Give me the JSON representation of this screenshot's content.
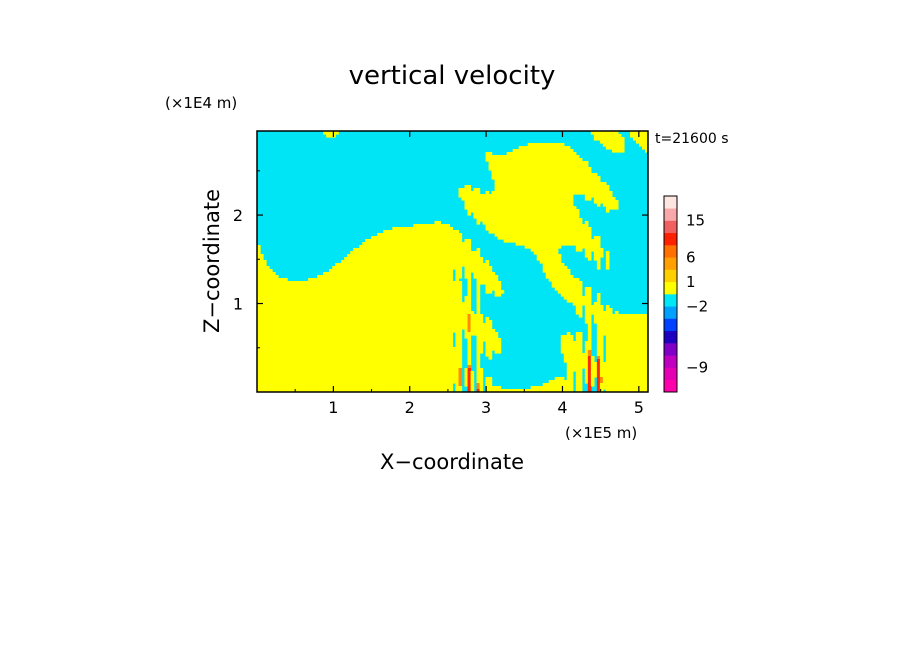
{
  "chart_data": {
    "type": "heatmap",
    "title": "vertical velocity",
    "xlabel": "X−coordinate",
    "ylabel": "Z−coordinate",
    "x_unit": "(×1E5 m)",
    "y_unit": "(×1E4 m)",
    "time_label": "t=21600 s",
    "xlim": [
      0,
      5.12
    ],
    "ylim": [
      0,
      2.95
    ],
    "x_ticks": [
      1,
      2,
      3,
      4,
      5
    ],
    "y_ticks": [
      1,
      2
    ],
    "x_tick_labels": [
      "1",
      "2",
      "3",
      "4",
      "5"
    ],
    "y_tick_labels": [
      "1",
      "2"
    ],
    "grid": false,
    "field_colors": {
      "negative_weak": "#00e5f5",
      "positive_weak": "#ffff00",
      "strong_negative": "#1a1ad0",
      "strong_positive": "#ff2b00",
      "orange": "#ff8c00"
    },
    "intense_cells_x": [
      2.8,
      4.4
    ],
    "colorbar": {
      "bins": [
        {
          "color": "#ff00aa"
        },
        {
          "color": "#e600b4"
        },
        {
          "color": "#c000c0"
        },
        {
          "color": "#8000c8"
        },
        {
          "color": "#2000c0"
        },
        {
          "color": "#0040ff"
        },
        {
          "color": "#00a0ff"
        },
        {
          "color": "#00e8f5"
        },
        {
          "color": "#ffff00"
        },
        {
          "color": "#ffd000"
        },
        {
          "color": "#ffa000"
        },
        {
          "color": "#ff7000"
        },
        {
          "color": "#ff2000"
        },
        {
          "color": "#f06060"
        },
        {
          "color": "#f8a8a8"
        },
        {
          "color": "#fde6e0"
        }
      ],
      "labels": [
        {
          "text": "15"
        },
        {
          "text": "6"
        },
        {
          "text": "1"
        },
        {
          "text": "−2"
        },
        {
          "text": "−9"
        }
      ]
    }
  }
}
